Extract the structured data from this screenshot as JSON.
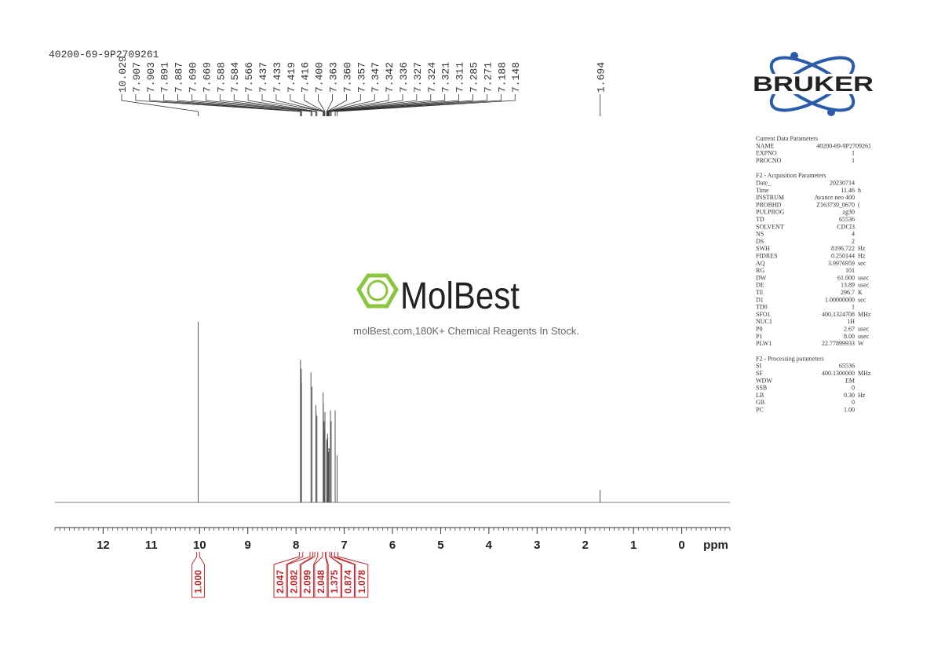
{
  "header": {
    "sample": "40200-69-9P2709261"
  },
  "chart_data": {
    "type": "nmr",
    "x_label": "ppm",
    "xlim": [
      13,
      -1
    ],
    "xticks": [
      12,
      11,
      10,
      9,
      8,
      7,
      6,
      5,
      4,
      3,
      2,
      1,
      0
    ],
    "ylim": [
      0,
      100
    ],
    "color": "#555555",
    "peaks": [
      10.029,
      7.907,
      7.903,
      7.891,
      7.887,
      {
        "value": 7.69,
        "label": "7.690"
      },
      7.669,
      7.588,
      7.584,
      7.566,
      7.437,
      7.433,
      7.419,
      7.416,
      {
        "value": 7.4,
        "label": "7.400"
      },
      7.363,
      {
        "value": 7.36,
        "label": "7.360"
      },
      7.357,
      7.347,
      7.342,
      7.336,
      7.327,
      7.324,
      7.321,
      7.311,
      7.285,
      7.271,
      7.188,
      7.148,
      1.694
    ],
    "intensities": [
      100,
      79,
      70,
      74,
      66,
      72,
      64,
      54,
      50,
      48,
      61,
      55,
      45,
      40,
      50,
      35,
      33,
      30,
      38,
      36,
      30,
      28,
      27,
      25,
      30,
      51,
      45,
      51,
      26,
      7
    ],
    "integral_color": "#c0282d",
    "integrals": [
      {
        "value": 1,
        "label": "1.000"
      },
      2.047,
      2.082,
      2.099,
      2.048,
      1.375,
      0.874,
      1.078
    ],
    "integral_ranges": [
      [
        10.06,
        10.0
      ],
      [
        7.93,
        7.86
      ],
      [
        7.71,
        7.65
      ],
      [
        7.61,
        7.55
      ],
      [
        7.45,
        7.39
      ],
      [
        7.38,
        7.3
      ],
      [
        7.3,
        7.26
      ],
      [
        7.2,
        7.13
      ]
    ]
  },
  "logo": {
    "brand": "BRUKER"
  },
  "watermark": {
    "name": "MolBest",
    "tagline": "molBest.com,180K+ Chemical Reagents In Stock."
  },
  "parameters": [
    {
      "title": "Current Data Parameters",
      "rows": [
        [
          "NAME",
          "40200-69-9P2709261"
        ],
        [
          "EXPNO",
          "1"
        ],
        [
          "PROCNO",
          "1"
        ]
      ]
    },
    {
      "title": "F2 - Acquisition Parameters",
      "rows": [
        [
          "Date_",
          "20230714"
        ],
        [
          "Time",
          "11.46",
          "h"
        ],
        [
          "INSTRUM",
          "Avance neo 400"
        ],
        [
          "PROBHD",
          "Z163739_0670",
          "("
        ],
        [
          "PULPROG",
          "zg30"
        ],
        [
          "TD",
          "65536"
        ],
        [
          "SOLVENT",
          "CDCl3"
        ],
        [
          "NS",
          "4"
        ],
        [
          "DS",
          "2"
        ],
        [
          "SWH",
          "8196.722",
          "Hz"
        ],
        [
          "FIDRES",
          "0.250144",
          "Hz"
        ],
        [
          "AQ",
          "3.9976959",
          "sec"
        ],
        [
          "RG",
          "101"
        ],
        [
          "DW",
          "61.000",
          "usec"
        ],
        [
          "DE",
          "13.89",
          "usec"
        ],
        [
          "TE",
          "296.7",
          "K"
        ],
        [
          "D1",
          "1.00000000",
          "sec"
        ],
        [
          "TD0",
          "1"
        ],
        [
          "SFO1",
          "400.1324708",
          "MHz"
        ],
        [
          "NUC1",
          "1H"
        ],
        [
          "P0",
          "2.67",
          "usec"
        ],
        [
          "P1",
          "8.00",
          "usec"
        ],
        [
          "PLW1",
          "22.77899933",
          "W"
        ]
      ]
    },
    {
      "title": "F2 - Processing parameters",
      "rows": [
        [
          "SI",
          "65536"
        ],
        [
          "SF",
          "400.1300000",
          "MHz"
        ],
        [
          "WDW",
          "EM"
        ],
        [
          "SSB",
          "0"
        ],
        [
          "LB",
          "0.30",
          "Hz"
        ],
        [
          "GB",
          "0"
        ],
        [
          "PC",
          "1.00"
        ]
      ]
    }
  ]
}
